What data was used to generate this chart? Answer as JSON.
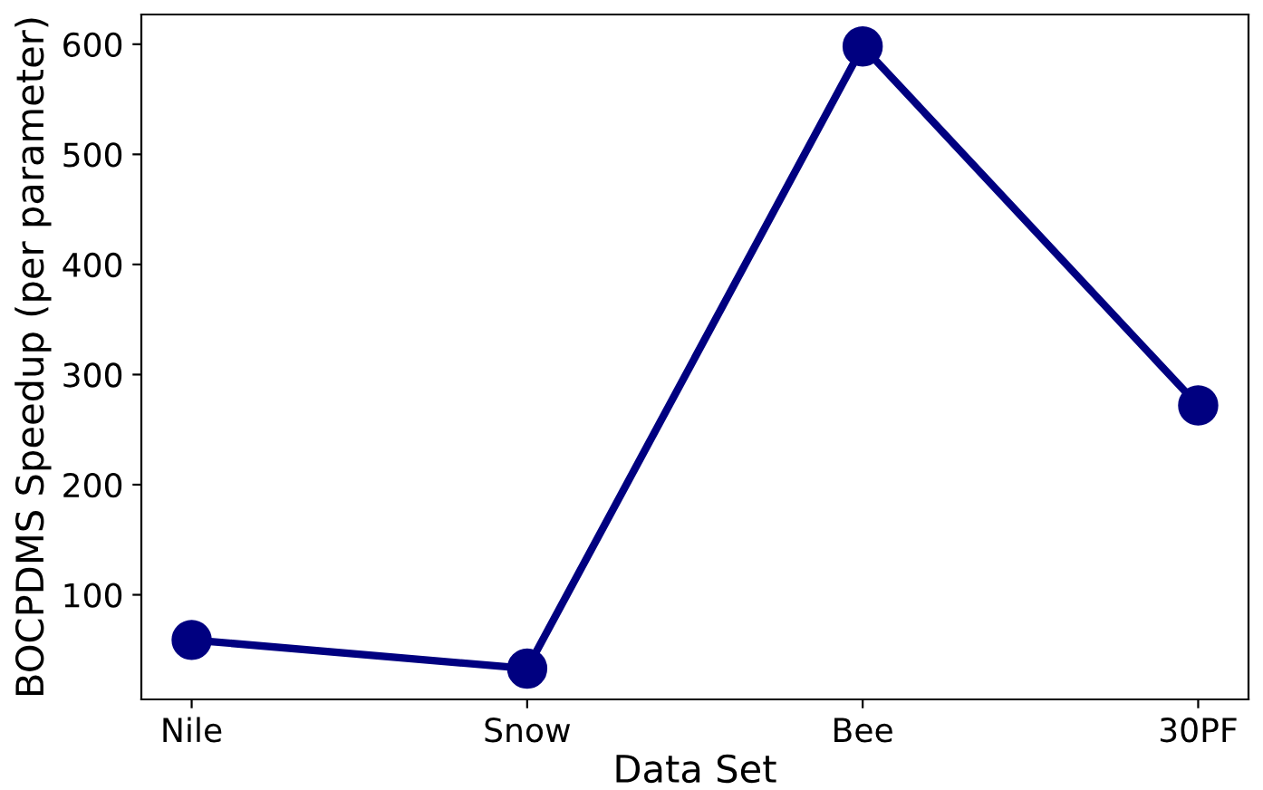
{
  "chart_data": {
    "type": "line",
    "xlabel": "Data Set",
    "ylabel": "BOCPDMS Speedup (per parameter)",
    "categories": [
      "Nile",
      "Snow",
      "Bee",
      "30PF"
    ],
    "series": [
      {
        "color": "#000080",
        "values": [
          59,
          33,
          598,
          272
        ]
      }
    ],
    "ylim": [
      5,
      627
    ],
    "yticks": [
      100,
      200,
      300,
      400,
      500,
      600
    ],
    "marker": "circle",
    "line_style": "solid",
    "grid": false
  }
}
